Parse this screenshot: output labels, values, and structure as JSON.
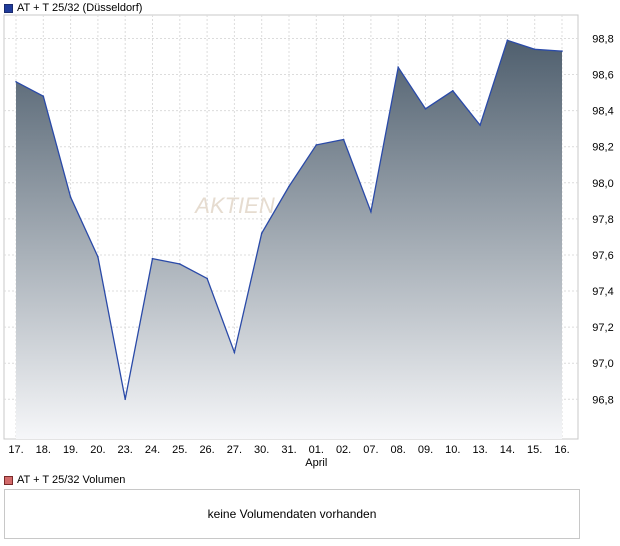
{
  "legend": {
    "price_label": "AT + T 25/32 (Düsseldorf)",
    "price_color": "#1f3b9a",
    "volume_label": "AT + T 25/32 Volumen",
    "volume_color": "#d26a6a"
  },
  "watermark": "AKTIEN",
  "volume": {
    "message": "keine Volumendaten vorhanden"
  },
  "chart_data": {
    "type": "area",
    "x": [
      "17.",
      "18.",
      "19.",
      "20.",
      "23.",
      "24.",
      "25.",
      "26.",
      "27.",
      "30.",
      "31.",
      "01.",
      "02.",
      "07.",
      "08.",
      "09.",
      "10.",
      "13.",
      "14.",
      "15.",
      "16."
    ],
    "month_label": {
      "at": "01.",
      "text": "April"
    },
    "series": [
      {
        "values": [
          98.56,
          98.48,
          97.92,
          97.59,
          96.8,
          97.58,
          97.55,
          97.47,
          97.06,
          97.72,
          97.98,
          98.21,
          98.24,
          97.84,
          98.64,
          98.41,
          98.51,
          98.32,
          98.79,
          98.74,
          98.73
        ]
      }
    ],
    "yticks": [
      96.8,
      97.0,
      97.2,
      97.4,
      97.6,
      97.8,
      98.0,
      98.2,
      98.4,
      98.6,
      98.8
    ],
    "ytick_labels": [
      "96,8",
      "97,0",
      "97,2",
      "97,4",
      "97,6",
      "97,8",
      "98,0",
      "98,2",
      "98,4",
      "98,6",
      "98,8"
    ],
    "ylim": [
      96.58,
      98.93
    ],
    "grid": true,
    "line_color": "#2a4aa8",
    "fill_top_color": "#4f5f6e",
    "fill_bottom_color": "#f6f7f9"
  }
}
